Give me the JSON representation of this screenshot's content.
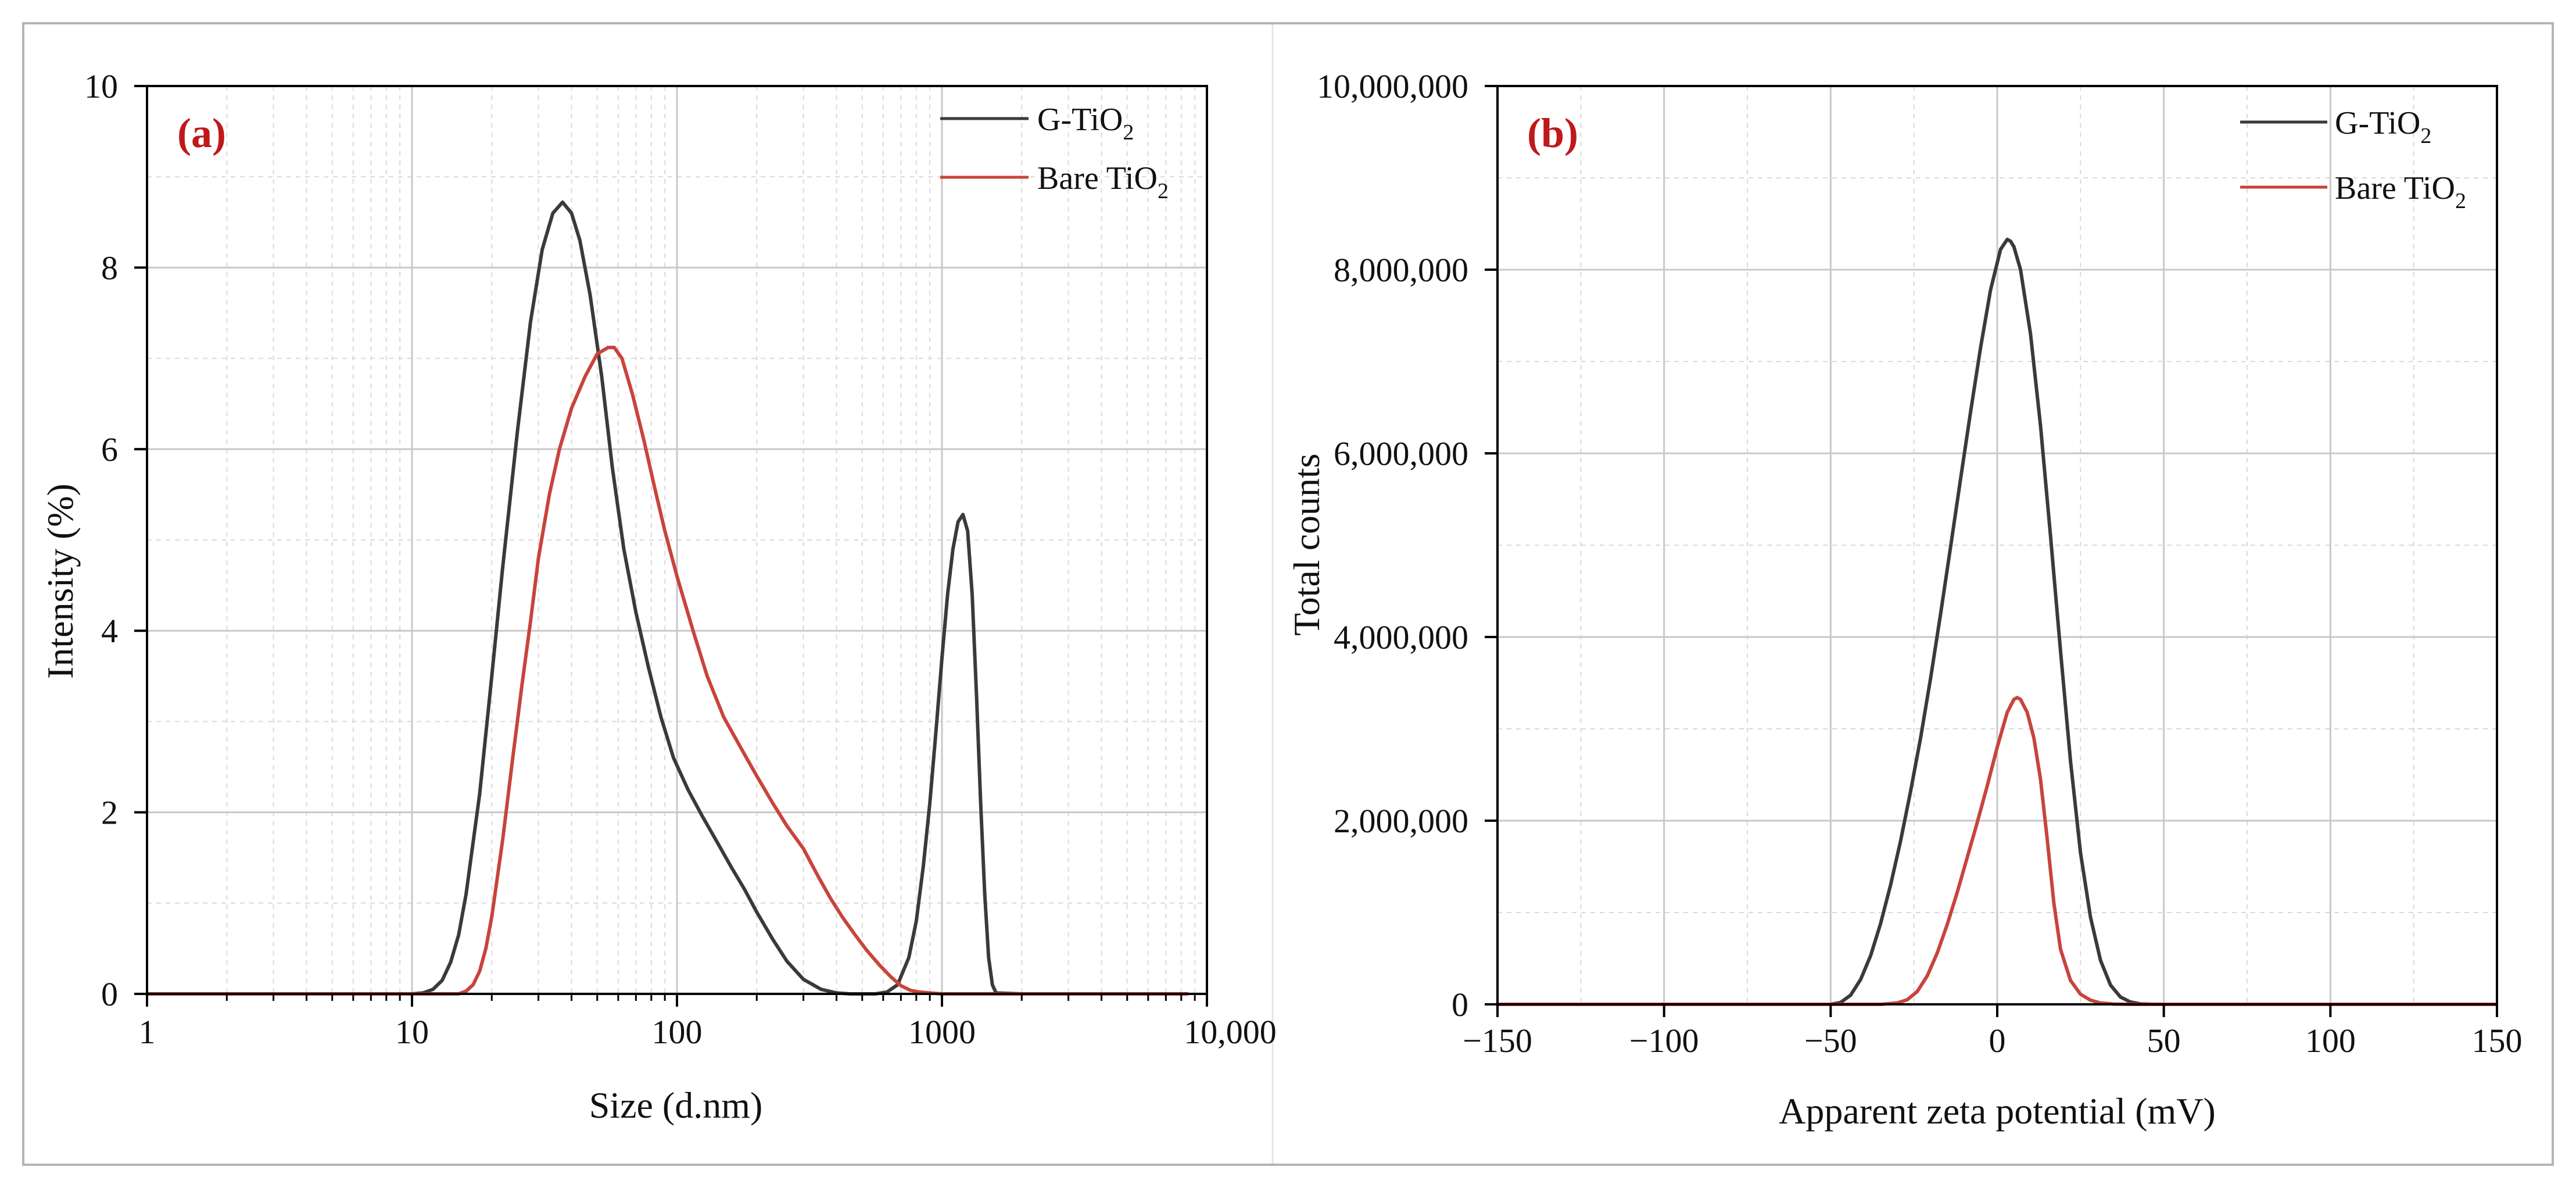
{
  "colors": {
    "g_tio2": "#3a3a3a",
    "bare_tio2": "#c8443c",
    "panel_label": "#c0181b",
    "grid_major": "#c8c8c8",
    "grid_minor": "#d9d9d9"
  },
  "chart_data": [
    {
      "panel": "(a)",
      "type": "line",
      "xscale": "log",
      "xlabel": "Size (d.nm)",
      "ylabel": "Intensity (%)",
      "xlim": [
        1,
        10000
      ],
      "ylim": [
        0,
        10
      ],
      "xticks": [
        1,
        10,
        100,
        1000,
        10000
      ],
      "xtick_labels": [
        "1",
        "10",
        "100",
        "1000",
        "10,000"
      ],
      "yticks": [
        0,
        2,
        4,
        6,
        8,
        10
      ],
      "ytick_labels": [
        "0",
        "2",
        "4",
        "6",
        "8",
        "10"
      ],
      "legend_position": "top-right",
      "series": [
        {
          "name": "G-TiO2",
          "legend_main": "G-TiO",
          "legend_sub": "2",
          "color_key": "g_tio2",
          "x": [
            1,
            8,
            10,
            11,
            12,
            13,
            14,
            15,
            16,
            18,
            20,
            22,
            25,
            28,
            31,
            34,
            37,
            40,
            43,
            47,
            52,
            57,
            63,
            70,
            78,
            87,
            97,
            110,
            125,
            140,
            160,
            180,
            200,
            230,
            260,
            300,
            350,
            400,
            450,
            500,
            560,
            620,
            680,
            750,
            800,
            850,
            900,
            950,
            1000,
            1050,
            1100,
            1150,
            1200,
            1250,
            1300,
            1350,
            1400,
            1450,
            1500,
            1550,
            1600,
            2000,
            8500
          ],
          "y": [
            0,
            0,
            0,
            0.01,
            0.05,
            0.15,
            0.35,
            0.65,
            1.1,
            2.2,
            3.5,
            4.7,
            6.2,
            7.4,
            8.2,
            8.6,
            8.72,
            8.6,
            8.3,
            7.7,
            6.8,
            5.8,
            4.9,
            4.2,
            3.6,
            3.05,
            2.6,
            2.25,
            1.95,
            1.7,
            1.4,
            1.15,
            0.9,
            0.6,
            0.36,
            0.16,
            0.05,
            0.01,
            0,
            0,
            0,
            0.02,
            0.1,
            0.4,
            0.8,
            1.4,
            2.1,
            2.9,
            3.7,
            4.4,
            4.9,
            5.2,
            5.28,
            5.1,
            4.4,
            3.3,
            2.1,
            1.1,
            0.4,
            0.1,
            0.01,
            0,
            0
          ]
        },
        {
          "name": "Bare TiO2",
          "legend_main": "Bare TiO",
          "legend_sub": "2",
          "color_key": "bare_tio2",
          "x": [
            1,
            12,
            15,
            16,
            17,
            18,
            19,
            20,
            22,
            24,
            26,
            28,
            30,
            33,
            36,
            40,
            45,
            50,
            55,
            58,
            62,
            68,
            75,
            82,
            90,
            100,
            115,
            130,
            150,
            175,
            200,
            230,
            260,
            300,
            340,
            380,
            420,
            470,
            520,
            580,
            640,
            700,
            760,
            820,
            900,
            1000,
            8500
          ],
          "y": [
            0,
            0,
            0,
            0.03,
            0.1,
            0.25,
            0.5,
            0.85,
            1.7,
            2.6,
            3.4,
            4.1,
            4.8,
            5.5,
            6.0,
            6.45,
            6.8,
            7.05,
            7.12,
            7.12,
            7.0,
            6.6,
            6.1,
            5.6,
            5.1,
            4.6,
            4.0,
            3.5,
            3.05,
            2.7,
            2.4,
            2.1,
            1.85,
            1.6,
            1.3,
            1.05,
            0.85,
            0.65,
            0.48,
            0.32,
            0.19,
            0.09,
            0.04,
            0.02,
            0.01,
            0,
            0
          ]
        }
      ]
    },
    {
      "panel": "(b)",
      "type": "line",
      "xscale": "linear",
      "xlabel": "Apparent zeta potential (mV)",
      "ylabel": "Total counts",
      "xlim": [
        -150,
        150
      ],
      "ylim": [
        0,
        10000000
      ],
      "xticks": [
        -150,
        -100,
        -50,
        0,
        50,
        100,
        150
      ],
      "xtick_labels": [
        "−150",
        "−100",
        "−50",
        "0",
        "50",
        "100",
        "150"
      ],
      "yticks": [
        0,
        2000000,
        4000000,
        6000000,
        8000000,
        10000000
      ],
      "ytick_labels": [
        "0",
        "2,000,000",
        "4,000,000",
        "6,000,000",
        "8,000,000",
        "10,000,000"
      ],
      "legend_position": "top-right",
      "series": [
        {
          "name": "G-TiO2",
          "legend_main": "G-TiO",
          "legend_sub": "2",
          "color_key": "g_tio2",
          "x": [
            -150,
            -50,
            -47,
            -44,
            -41,
            -38,
            -35,
            -32,
            -29,
            -26,
            -23,
            -20,
            -17,
            -14,
            -11,
            -8,
            -5,
            -2,
            1,
            3,
            4,
            5,
            7,
            10,
            13,
            16,
            19,
            22,
            25,
            28,
            31,
            34,
            37,
            40,
            43,
            46,
            50,
            150
          ],
          "y": [
            0,
            0,
            20000,
            100000,
            270000,
            530000,
            880000,
            1300000,
            1780000,
            2320000,
            2900000,
            3550000,
            4250000,
            4980000,
            5720000,
            6450000,
            7150000,
            7780000,
            8220000,
            8330000,
            8310000,
            8250000,
            8000000,
            7300000,
            6300000,
            5100000,
            3850000,
            2650000,
            1650000,
            950000,
            480000,
            210000,
            80000,
            25000,
            5000,
            1000,
            0,
            0
          ]
        },
        {
          "name": "Bare TiO2",
          "legend_main": "Bare TiO",
          "legend_sub": "2",
          "color_key": "bare_tio2",
          "x": [
            -150,
            -35,
            -30,
            -27,
            -24,
            -21,
            -18,
            -15,
            -12,
            -9,
            -6,
            -3,
            0,
            3,
            5,
            6,
            7,
            9,
            11,
            13,
            15,
            17,
            19,
            22,
            25,
            28,
            31,
            35,
            40,
            150
          ],
          "y": [
            0,
            0,
            15000,
            50000,
            140000,
            310000,
            560000,
            870000,
            1220000,
            1600000,
            1980000,
            2380000,
            2800000,
            3180000,
            3320000,
            3340000,
            3320000,
            3180000,
            2900000,
            2450000,
            1800000,
            1100000,
            600000,
            260000,
            110000,
            45000,
            15000,
            3000,
            0,
            0
          ]
        }
      ]
    }
  ]
}
